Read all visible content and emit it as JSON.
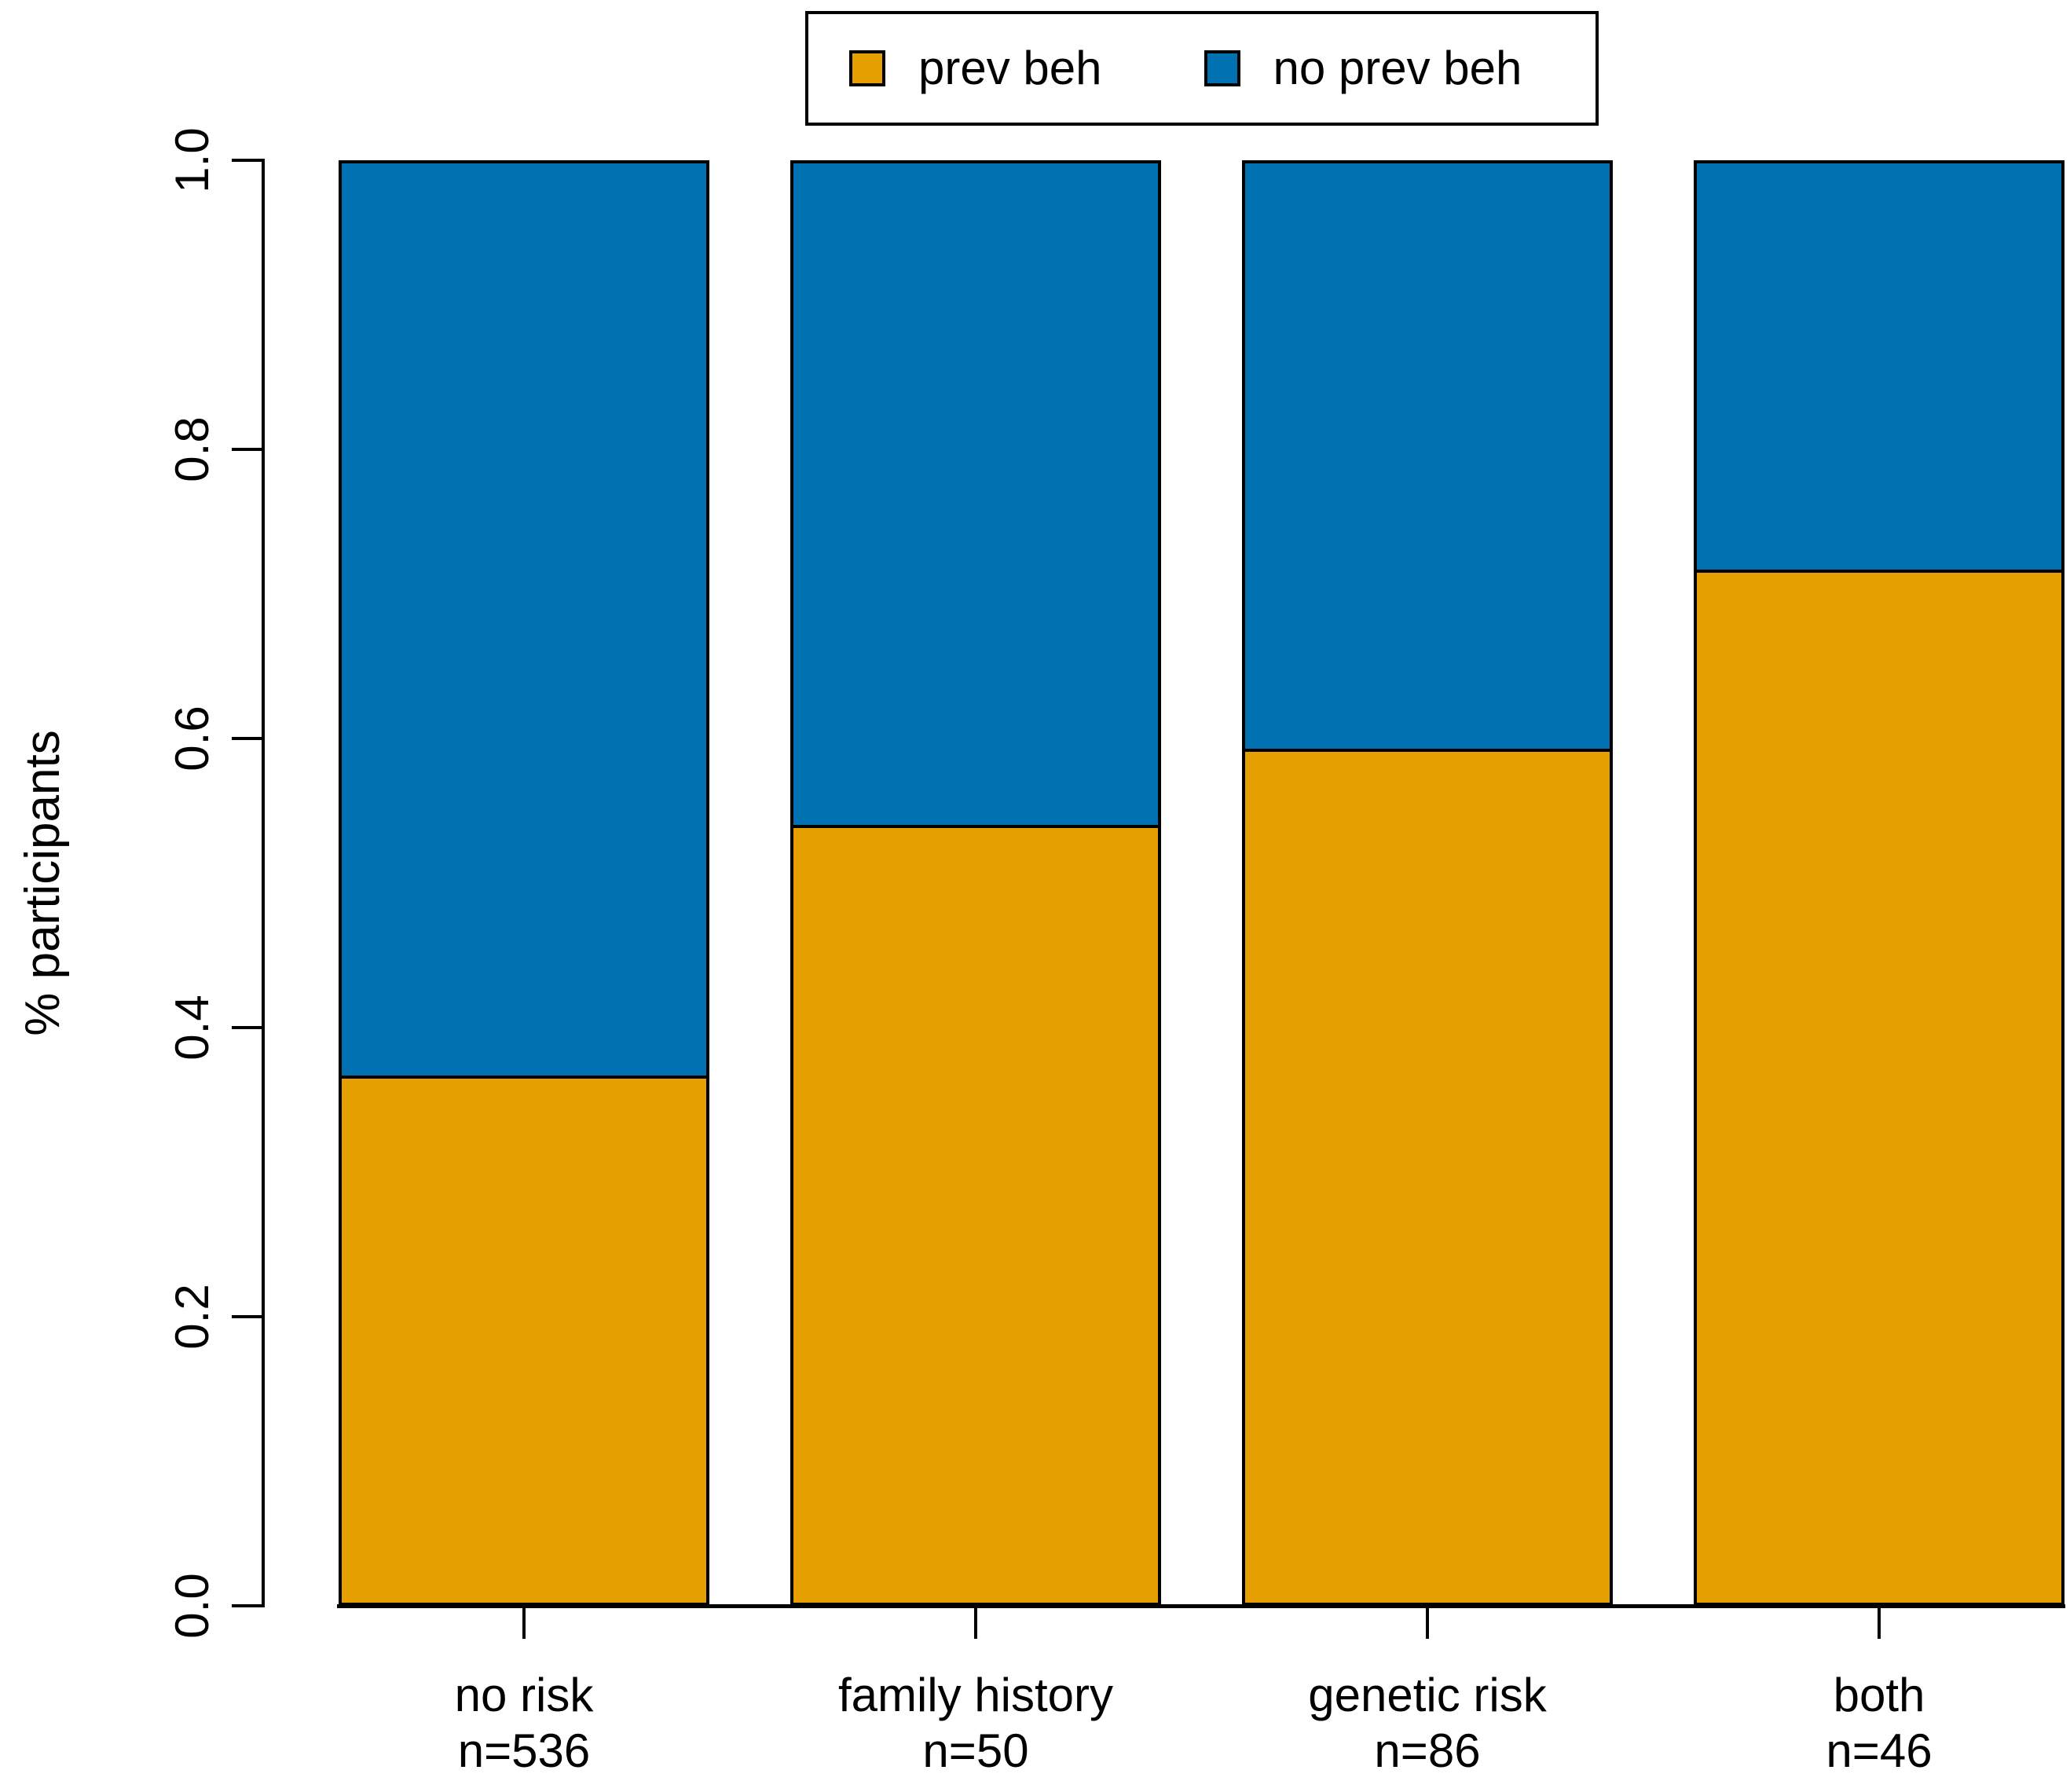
{
  "chart_data": {
    "type": "bar",
    "stacked": true,
    "title": "",
    "xlabel": "",
    "ylabel": "% participants",
    "ylim": [
      0,
      1
    ],
    "ytick_labels": [
      "0.0",
      "0.2",
      "0.4",
      "0.6",
      "0.8",
      "1.0"
    ],
    "categories": [
      "no risk",
      "family history",
      "genetic risk",
      "both"
    ],
    "category_sublabels": [
      "n=536",
      "n=50",
      "n=86",
      "n=46"
    ],
    "series": [
      {
        "name": "prev beh",
        "color": "#E69F00",
        "values": [
          0.367,
          0.54,
          0.593,
          0.717
        ]
      },
      {
        "name": "no prev beh",
        "color": "#0072B2",
        "values": [
          0.633,
          0.46,
          0.407,
          0.283
        ]
      }
    ],
    "legend_position": "top",
    "grid": false,
    "bar_border_color": "#000000",
    "axis_color": "#000000",
    "text_color": "#000000",
    "background_color": "#ffffff"
  },
  "legend": {
    "items": [
      {
        "label": "prev beh",
        "swatch_color": "#E69F00"
      },
      {
        "label": "no prev beh",
        "swatch_color": "#0072B2"
      }
    ]
  }
}
